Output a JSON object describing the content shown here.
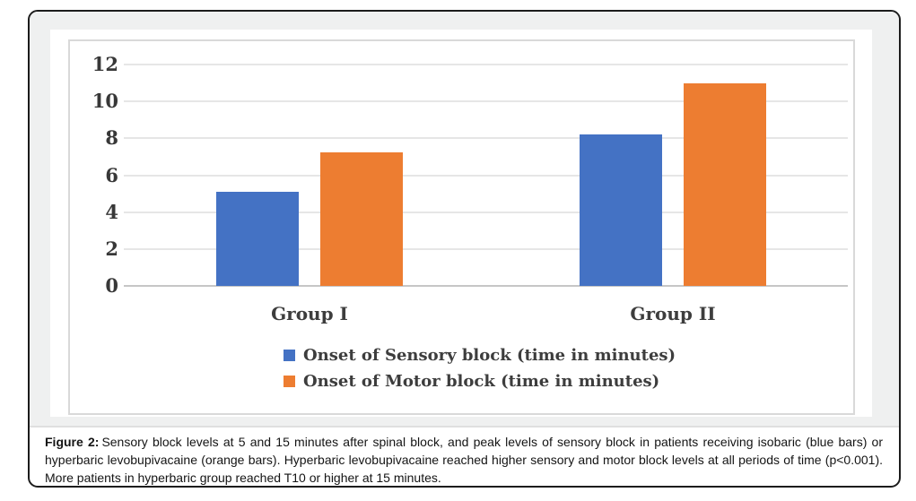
{
  "figure": {
    "caption_label": "Figure 2:",
    "caption_text": "Sensory block levels at 5 and 15 minutes after spinal block, and peak levels of sensory block in patients receiving isobaric (blue bars) or hyperbaric levobupivacaine (orange bars). Hyperbaric levobupivacaine reached higher sensory and motor block levels at all periods of time (p<0.001). More patients in hyperbaric group reached T10 or higher at 15 minutes."
  },
  "chart_data": {
    "type": "bar",
    "categories": [
      "Group I",
      "Group II"
    ],
    "series": [
      {
        "name": "Onset of Sensory block (time in minutes)",
        "color": "#4472C4",
        "values": [
          5.1,
          8.2
        ]
      },
      {
        "name": "Onset of Motor block (time in minutes)",
        "color": "#ED7D31",
        "values": [
          7.25,
          11
        ]
      }
    ],
    "title": "",
    "xlabel": "",
    "ylabel": "",
    "ylim": [
      0,
      12
    ],
    "ytick_step": 2,
    "grid": true,
    "legend_position": "bottom",
    "colors": {
      "sensory_blue": "#4472C4",
      "motor_orange": "#ED7D31",
      "gridline": "#e6e6e6",
      "axis_text": "#3d3d3d",
      "card_border": "#1c1c1c",
      "chart_margin_bg": "#eff0f0"
    }
  }
}
